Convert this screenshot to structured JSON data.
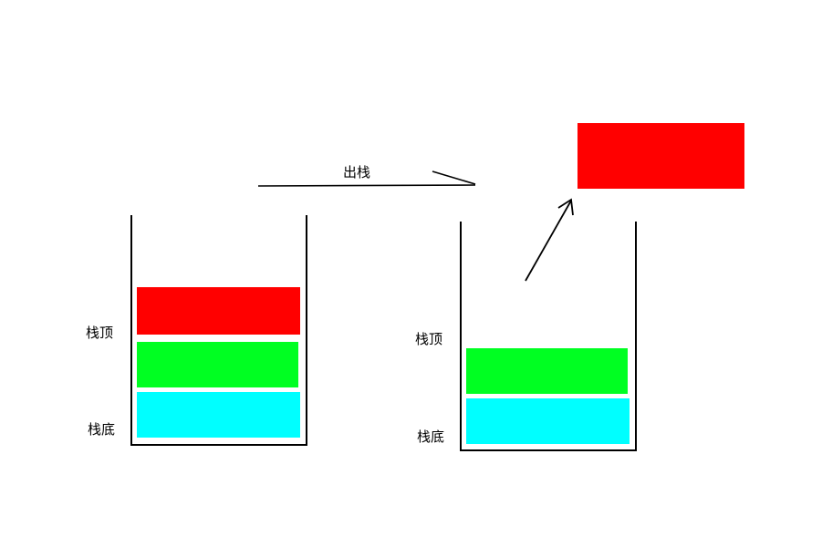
{
  "diagram": {
    "arrow_label": "出栈",
    "left_stack": {
      "top_label": "栈顶",
      "bottom_label": "栈底",
      "blocks": [
        "red",
        "green",
        "cyan"
      ]
    },
    "right_stack": {
      "top_label": "栈顶",
      "bottom_label": "栈底",
      "blocks": [
        "green",
        "cyan"
      ]
    },
    "popped_block": "red"
  },
  "colors": {
    "red": "#ff0000",
    "green": "#00ff22",
    "cyan": "#00ffff",
    "outline": "#000000"
  }
}
